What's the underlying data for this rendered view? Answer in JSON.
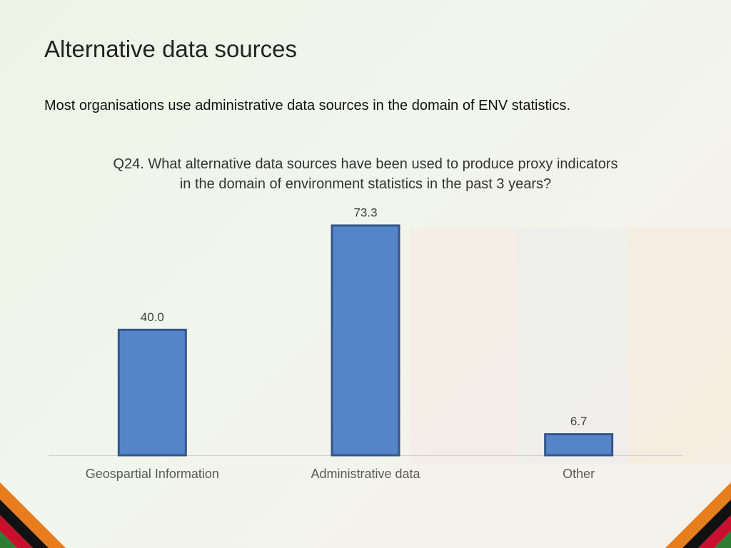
{
  "slide": {
    "title": "Alternative data sources",
    "subtitle": "Most organisations use administrative data sources in the domain of ENV statistics."
  },
  "chart_data": {
    "type": "bar",
    "title": "Q24. What alternative data sources have been used to produce proxy indicators in the domain of environment statistics in the past 3 years?",
    "categories": [
      "Geospartial Information",
      "Administrative data",
      "Other"
    ],
    "values": [
      40.0,
      73.3,
      6.7
    ],
    "value_labels": [
      "40.0",
      "73.3",
      "6.7"
    ],
    "color": "#5585c8"
  }
}
